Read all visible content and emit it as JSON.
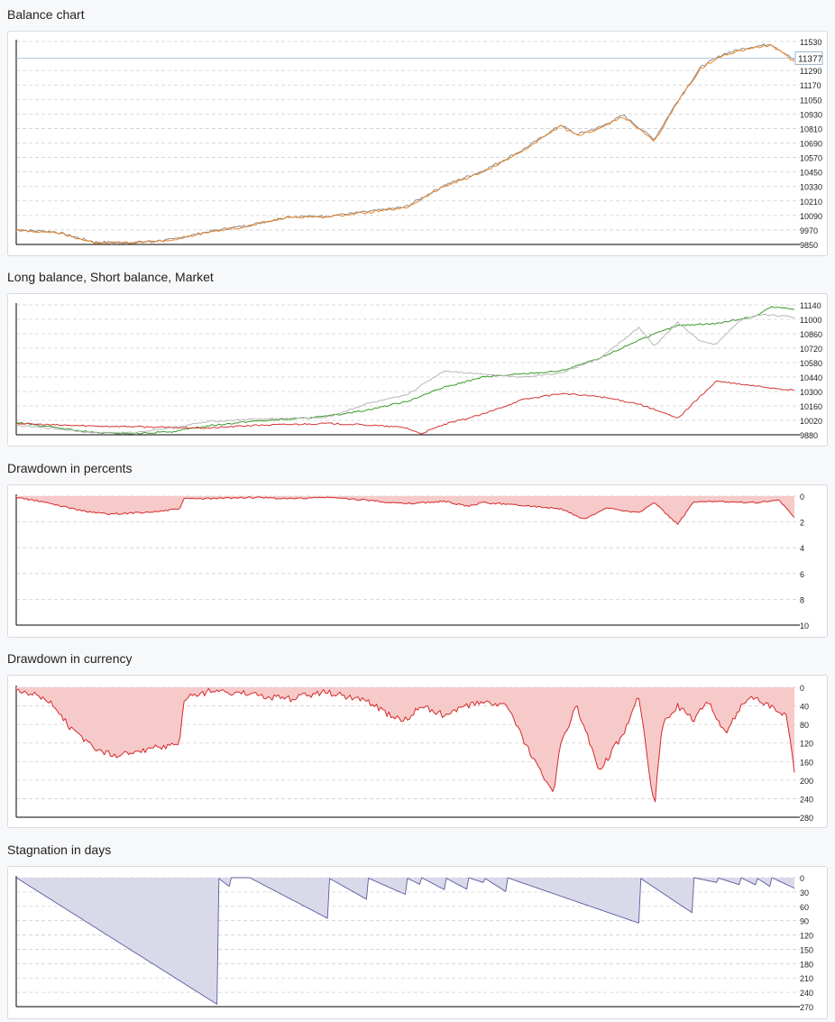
{
  "chart_data": [
    {
      "id": "balance",
      "type": "line",
      "title": "Balance chart",
      "y_ticks": [
        11530,
        11290,
        11170,
        11050,
        10930,
        10810,
        10690,
        10570,
        10450,
        10330,
        10210,
        10090,
        9970,
        9850
      ],
      "ylim": [
        9850,
        11530
      ],
      "current_value": "11377",
      "series": [
        {
          "color": "#8a8a8a",
          "x": [
            0,
            0.05,
            0.1,
            0.15,
            0.2,
            0.25,
            0.3,
            0.35,
            0.4,
            0.45,
            0.5,
            0.55,
            0.6,
            0.65,
            0.7,
            0.72,
            0.75,
            0.78,
            0.82,
            0.85,
            0.88,
            0.91,
            0.94,
            0.97,
            1.0
          ],
          "values": [
            9970,
            9955,
            9870,
            9865,
            9890,
            9960,
            10010,
            10080,
            10085,
            10120,
            10160,
            10340,
            10460,
            10630,
            10840,
            10760,
            10820,
            10920,
            10720,
            11040,
            11320,
            11430,
            11480,
            11510,
            11377
          ]
        },
        {
          "color": "#e8862a",
          "x": [
            0,
            0.05,
            0.1,
            0.15,
            0.2,
            0.25,
            0.3,
            0.35,
            0.4,
            0.45,
            0.5,
            0.55,
            0.6,
            0.65,
            0.7,
            0.72,
            0.75,
            0.78,
            0.82,
            0.85,
            0.88,
            0.91,
            0.94,
            0.97,
            1.0
          ],
          "values": [
            9968,
            9950,
            9866,
            9862,
            9886,
            9955,
            10005,
            10076,
            10080,
            10115,
            10150,
            10330,
            10450,
            10620,
            10830,
            10750,
            10810,
            10910,
            10700,
            11030,
            11310,
            11420,
            11470,
            11500,
            11360
          ]
        }
      ]
    },
    {
      "id": "long-short",
      "type": "line",
      "title": "Long balance, Short balance, Market",
      "y_ticks": [
        11140,
        11000,
        10860,
        10720,
        10580,
        10440,
        10300,
        10160,
        10020,
        9880
      ],
      "ylim": [
        9880,
        11140
      ],
      "series": [
        {
          "color": "#3a9a2a",
          "x": [
            0,
            0.05,
            0.1,
            0.15,
            0.2,
            0.25,
            0.3,
            0.35,
            0.4,
            0.45,
            0.5,
            0.55,
            0.6,
            0.65,
            0.7,
            0.75,
            0.8,
            0.85,
            0.9,
            0.95,
            0.97,
            1.0
          ],
          "values": [
            10000,
            9950,
            9900,
            9890,
            9910,
            9970,
            10010,
            10030,
            10060,
            10120,
            10200,
            10340,
            10440,
            10470,
            10500,
            10620,
            10800,
            10940,
            10960,
            11030,
            11120,
            11100
          ]
        },
        {
          "color": "#d43535",
          "x": [
            0,
            0.05,
            0.1,
            0.15,
            0.2,
            0.25,
            0.3,
            0.35,
            0.4,
            0.45,
            0.5,
            0.52,
            0.55,
            0.6,
            0.65,
            0.7,
            0.75,
            0.8,
            0.85,
            0.88,
            0.9,
            0.93,
            1.0
          ],
          "values": [
            9990,
            9975,
            9965,
            9960,
            9950,
            9945,
            9970,
            9980,
            9990,
            9975,
            9950,
            9890,
            9980,
            10080,
            10220,
            10280,
            10250,
            10180,
            10040,
            10260,
            10400,
            10370,
            10310
          ]
        },
        {
          "color": "#b8b8b8",
          "x": [
            0,
            0.05,
            0.1,
            0.15,
            0.2,
            0.25,
            0.3,
            0.35,
            0.4,
            0.45,
            0.5,
            0.55,
            0.6,
            0.65,
            0.7,
            0.75,
            0.8,
            0.82,
            0.85,
            0.88,
            0.9,
            0.93,
            0.96,
            1.0
          ],
          "values": [
            9970,
            9940,
            9900,
            9900,
            9950,
            10010,
            10030,
            10040,
            10050,
            10180,
            10260,
            10500,
            10470,
            10440,
            10480,
            10620,
            10920,
            10740,
            10970,
            10780,
            10760,
            10990,
            11050,
            11020
          ]
        }
      ]
    },
    {
      "id": "dd-pct",
      "type": "area",
      "title": "Drawdown in percents",
      "y_ticks": [
        0,
        2,
        4,
        6,
        8,
        10
      ],
      "ylim": [
        0,
        10
      ],
      "inverted": true,
      "series": [
        {
          "color": "#d42a2a",
          "fill": "#f7caca",
          "x": [
            0,
            0.03,
            0.06,
            0.09,
            0.12,
            0.15,
            0.18,
            0.21,
            0.215,
            0.25,
            0.3,
            0.35,
            0.4,
            0.45,
            0.5,
            0.55,
            0.58,
            0.6,
            0.65,
            0.7,
            0.73,
            0.76,
            0.8,
            0.82,
            0.85,
            0.87,
            0.9,
            0.95,
            0.98,
            1.0
          ],
          "values": [
            0.1,
            0.4,
            0.8,
            1.2,
            1.4,
            1.3,
            1.2,
            1.0,
            0.2,
            0.2,
            0.1,
            0.2,
            0.1,
            0.3,
            0.6,
            0.4,
            0.8,
            0.5,
            0.7,
            1.0,
            1.8,
            0.9,
            1.3,
            0.5,
            2.2,
            0.5,
            0.4,
            0.5,
            0.3,
            1.7
          ]
        }
      ]
    },
    {
      "id": "dd-cur",
      "type": "area",
      "title": "Drawdown in currency",
      "y_ticks": [
        0,
        40,
        80,
        120,
        160,
        200,
        240,
        280
      ],
      "ylim": [
        0,
        280
      ],
      "inverted": true,
      "series": [
        {
          "color": "#d42a2a",
          "fill": "#f7caca",
          "x": [
            0,
            0.03,
            0.05,
            0.07,
            0.09,
            0.11,
            0.13,
            0.15,
            0.18,
            0.21,
            0.215,
            0.25,
            0.3,
            0.35,
            0.4,
            0.45,
            0.48,
            0.5,
            0.52,
            0.55,
            0.58,
            0.6,
            0.63,
            0.66,
            0.69,
            0.7,
            0.72,
            0.75,
            0.78,
            0.8,
            0.82,
            0.83,
            0.85,
            0.87,
            0.89,
            0.91,
            0.94,
            0.97,
            0.99,
            1.0
          ],
          "values": [
            5,
            20,
            40,
            90,
            120,
            140,
            148,
            140,
            130,
            120,
            25,
            8,
            15,
            25,
            10,
            30,
            60,
            70,
            40,
            60,
            40,
            30,
            40,
            140,
            230,
            120,
            40,
            180,
            100,
            20,
            260,
            80,
            40,
            70,
            30,
            100,
            20,
            40,
            60,
            185
          ]
        }
      ]
    },
    {
      "id": "stagnation",
      "type": "area",
      "title": "Stagnation in days",
      "y_ticks": [
        0,
        30,
        60,
        90,
        120,
        150,
        180,
        210,
        240,
        270
      ],
      "ylim": [
        0,
        270
      ],
      "inverted": true,
      "series": [
        {
          "color": "#5a5aa0",
          "fill": "#d9d9ea",
          "x": [
            0,
            0.258,
            0.259,
            0.275,
            0.276,
            0.299,
            0.3,
            0.4,
            0.401,
            0.45,
            0.451,
            0.5,
            0.501,
            0.52,
            0.521,
            0.55,
            0.551,
            0.58,
            0.581,
            0.6,
            0.601,
            0.63,
            0.631,
            0.8,
            0.801,
            0.87,
            0.871,
            0.9,
            0.901,
            0.93,
            0.931,
            0.95,
            0.951,
            0.97,
            0.971,
            1.0
          ],
          "values": [
            0,
            265,
            0,
            20,
            0,
            0,
            0,
            85,
            0,
            45,
            0,
            35,
            0,
            15,
            0,
            25,
            0,
            25,
            0,
            10,
            0,
            30,
            0,
            95,
            0,
            75,
            0,
            10,
            0,
            15,
            0,
            15,
            0,
            20,
            0,
            22
          ]
        }
      ]
    }
  ]
}
